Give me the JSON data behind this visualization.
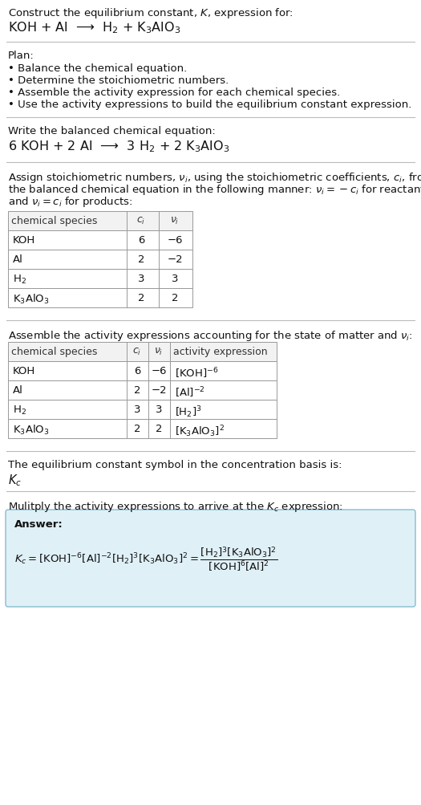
{
  "title_line1": "Construct the equilibrium constant, $K$, expression for:",
  "title_line2": "KOH + Al  ⟶  H$_2$ + K$_3$AlO$_3$",
  "plan_header": "Plan:",
  "plan_bullets": [
    "• Balance the chemical equation.",
    "• Determine the stoichiometric numbers.",
    "• Assemble the activity expression for each chemical species.",
    "• Use the activity expressions to build the equilibrium constant expression."
  ],
  "balanced_header": "Write the balanced chemical equation:",
  "balanced_eq": "6 KOH + 2 Al  ⟶  3 H$_2$ + 2 K$_3$AlO$_3$",
  "stoich_header_parts": [
    "Assign stoichiometric numbers, $\\nu_i$, using the stoichiometric coefficients, $c_i$, from",
    "the balanced chemical equation in the following manner: $\\nu_i = -c_i$ for reactants",
    "and $\\nu_i = c_i$ for products:"
  ],
  "table1_headers": [
    "chemical species",
    "$c_i$",
    "$\\nu_i$"
  ],
  "table1_rows": [
    [
      "KOH",
      "6",
      "−6"
    ],
    [
      "Al",
      "2",
      "−2"
    ],
    [
      "H$_2$",
      "3",
      "3"
    ],
    [
      "K$_3$AlO$_3$",
      "2",
      "2"
    ]
  ],
  "activity_header": "Assemble the activity expressions accounting for the state of matter and $\\nu_i$:",
  "table2_headers": [
    "chemical species",
    "$c_i$",
    "$\\nu_i$",
    "activity expression"
  ],
  "table2_rows": [
    [
      "KOH",
      "6",
      "−6",
      "[KOH]$^{-6}$"
    ],
    [
      "Al",
      "2",
      "−2",
      "[Al]$^{-2}$"
    ],
    [
      "H$_2$",
      "3",
      "3",
      "[H$_2$]$^3$"
    ],
    [
      "K$_3$AlO$_3$",
      "2",
      "2",
      "[K$_3$AlO$_3$]$^2$"
    ]
  ],
  "kc_text": "The equilibrium constant symbol in the concentration basis is:",
  "kc_symbol": "$K_c$",
  "multiply_header": "Mulitply the activity expressions to arrive at the $K_c$ expression:",
  "answer_box_color": "#dff0f7",
  "answer_box_border": "#88bdd0",
  "answer_label": "Answer:",
  "bg_color": "#ffffff",
  "sep_color": "#bbbbbb"
}
